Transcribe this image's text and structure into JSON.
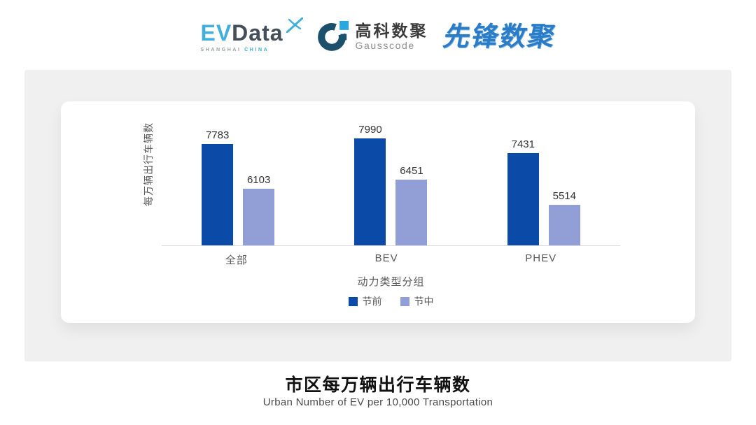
{
  "header": {
    "logos": {
      "evdata": {
        "text_primary": "EV",
        "text_secondary": "Data",
        "subtext_primary": "SHANGHAI",
        "subtext_secondary": "CHINA",
        "color_primary": "#41AEDC",
        "color_secondary": "#454E59"
      },
      "gausscode": {
        "text_cn": "高科数聚",
        "text_en": "Gausscode",
        "mark_color": "#1B4F6B",
        "accent_color": "#29A8DF"
      },
      "pioneer": {
        "text": "先锋数聚",
        "color": "#2A7CC7"
      }
    }
  },
  "panel": {
    "background": "#F0F0F0",
    "card_background": "#FFFFFF"
  },
  "chart_data": {
    "type": "bar",
    "title": "市区每万辆出行车辆数",
    "subtitle": "Urban Number of EV per 10,000 Transportation",
    "categories": [
      "全部",
      "BEV",
      "PHEV"
    ],
    "series": [
      {
        "name": "节前",
        "color": "#0B4AA6",
        "values": [
          7783,
          7990,
          7431
        ]
      },
      {
        "name": "节中",
        "color": "#919FD6",
        "values": [
          6103,
          6451,
          5514
        ]
      }
    ],
    "xlabel": "动力类型分组",
    "ylabel": "每万辆出行车辆数",
    "ylim": [
      4000,
      8200
    ],
    "grid": false,
    "value_labels": true,
    "legend_position": "bottom",
    "axis_line_color": "#DBDBDB",
    "label_color": "#595959",
    "value_label_color": "#333333"
  }
}
